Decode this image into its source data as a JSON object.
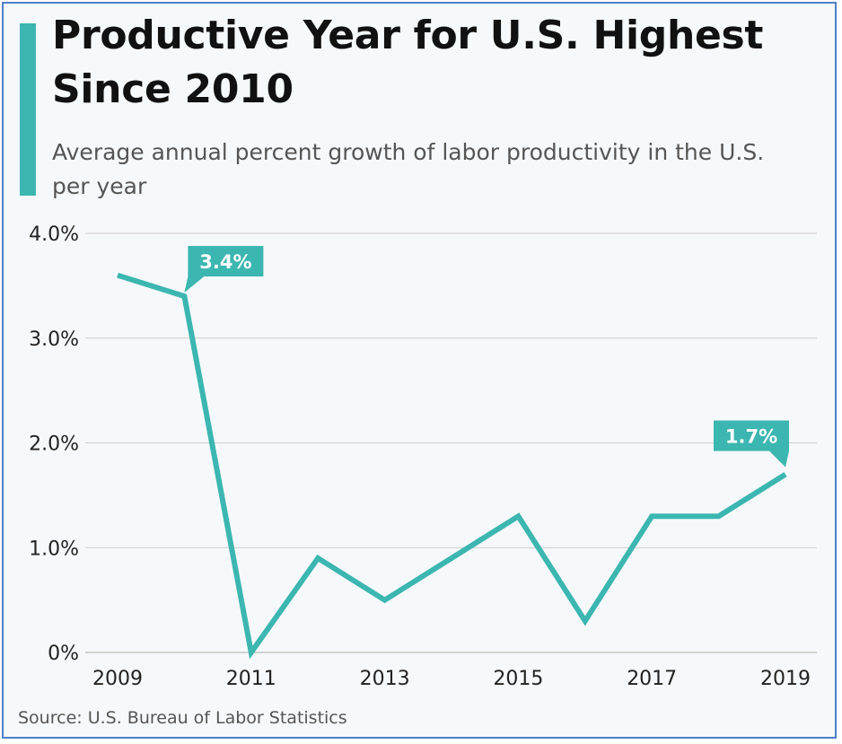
{
  "title": "Productive Year for U.S. Highest Since 2010",
  "subtitle": "Average annual percent growth of labor productivity in the U.S. per year",
  "source": "Source: U.S. Bureau of Labor Statistics",
  "colors": {
    "accent": "#3cb6b0",
    "grid": "#cccccc",
    "border": "#4f7fc9"
  },
  "chart_data": {
    "type": "line",
    "x": [
      2009,
      2010,
      2011,
      2012,
      2013,
      2014,
      2015,
      2016,
      2017,
      2018,
      2019
    ],
    "values": [
      3.6,
      3.4,
      0.0,
      0.9,
      0.5,
      0.9,
      1.3,
      0.3,
      1.3,
      1.3,
      1.7
    ],
    "ylim": [
      0,
      4
    ],
    "yticks": [
      0,
      1,
      2,
      3,
      4
    ],
    "ytick_labels": [
      "0%",
      "1.0%",
      "2.0%",
      "3.0%",
      "4.0%"
    ],
    "xticks": [
      2009,
      2011,
      2013,
      2015,
      2017,
      2019
    ],
    "xtick_labels": [
      "2009",
      "2011",
      "2013",
      "2015",
      "2017",
      "2019"
    ],
    "annotations": [
      {
        "x": 2010,
        "y": 3.4,
        "text": "3.4%"
      },
      {
        "x": 2019,
        "y": 1.7,
        "text": "1.7%"
      }
    ],
    "grid": true,
    "legend": false
  }
}
